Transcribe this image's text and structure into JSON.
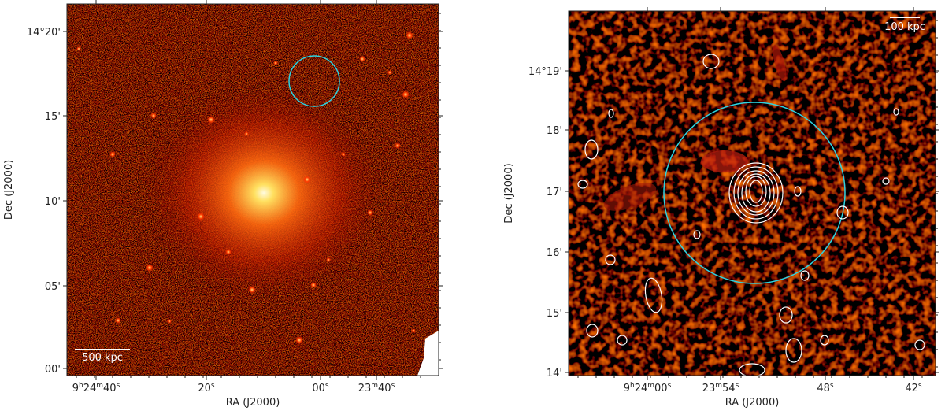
{
  "panels": [
    {
      "x_label": "RA (J2000)",
      "y_label": "Dec (J2000)",
      "x_ticks": [
        "9h24m40s",
        "20s",
        "00s",
        "23m40s"
      ],
      "y_ticks": [
        "14°20'",
        "15'",
        "10'",
        "05'",
        "00'"
      ],
      "scale_bar": "500 kpc"
    },
    {
      "x_label": "RA (J2000)",
      "y_label": "Dec (J2000)",
      "x_ticks": [
        "9h24m00s",
        "23m54s",
        "48s",
        "42s"
      ],
      "y_ticks": [
        "14°19'",
        "18'",
        "17'",
        "16'",
        "15'",
        "14'"
      ],
      "scale_bar": "100 kpc"
    }
  ]
}
